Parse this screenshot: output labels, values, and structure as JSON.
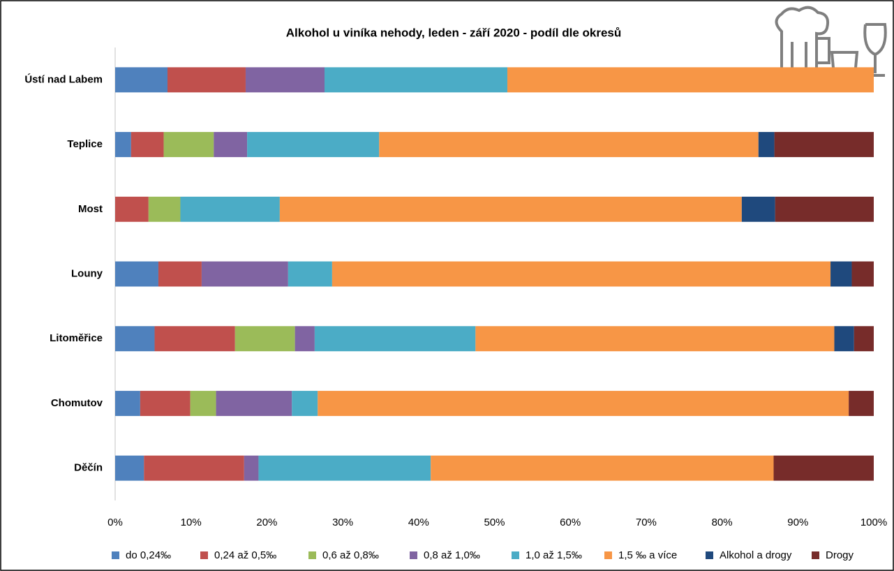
{
  "chart_data": {
    "type": "stacked-bar-horizontal",
    "title": "Alkohol u viníka nehody, leden - září 2020 - podíl dle okresů",
    "categories": [
      "Ústí nad Labem",
      "Teplice",
      "Most",
      "Louny",
      "Litoměřice",
      "Chomutov",
      "Děčín"
    ],
    "series": [
      {
        "name": "do 0,24‰",
        "color": "#4f81bd",
        "values": [
          6.9,
          2.1,
          0,
          5.7,
          5.2,
          3.3,
          3.8
        ]
      },
      {
        "name": "0,24 až 0,5‰",
        "color": "#c0504d",
        "values": [
          10.3,
          4.3,
          4.4,
          5.7,
          10.6,
          6.6,
          13.2
        ]
      },
      {
        "name": "0,6 až 0,8‰",
        "color": "#9bbb59",
        "values": [
          0,
          6.6,
          4.2,
          0,
          7.9,
          3.4,
          0
        ]
      },
      {
        "name": "0,8 až 1,0‰",
        "color": "#8064a2",
        "values": [
          10.4,
          4.4,
          0,
          11.4,
          2.6,
          10.0,
          1.9
        ]
      },
      {
        "name": "1,0 až 1,5‰",
        "color": "#4bacc6",
        "values": [
          24.1,
          17.4,
          13.1,
          5.8,
          21.2,
          3.4,
          22.7
        ]
      },
      {
        "name": "1,5 ‰ a více",
        "color": "#f79646",
        "values": [
          48.3,
          50.0,
          60.9,
          65.7,
          47.3,
          70.0,
          45.2
        ]
      },
      {
        "name": "Alkohol a drogy",
        "color": "#1f497d",
        "values": [
          0,
          2.1,
          4.4,
          2.8,
          2.6,
          0,
          0
        ]
      },
      {
        "name": "Drogy",
        "color": "#772c2a",
        "values": [
          0,
          13.1,
          13.0,
          2.9,
          2.6,
          3.3,
          13.2
        ]
      }
    ],
    "xlim": [
      0,
      100
    ],
    "xticks": [
      {
        "value": 0,
        "label": "0%"
      },
      {
        "value": 10,
        "label": "10%"
      },
      {
        "value": 20,
        "label": "20%"
      },
      {
        "value": 30,
        "label": "30%"
      },
      {
        "value": 40,
        "label": "40%"
      },
      {
        "value": 50,
        "label": "50%"
      },
      {
        "value": 60,
        "label": "60%"
      },
      {
        "value": 70,
        "label": "70%"
      },
      {
        "value": 80,
        "label": "80%"
      },
      {
        "value": 90,
        "label": "90%"
      },
      {
        "value": 100,
        "label": "100%"
      }
    ],
    "legend": "bottom"
  }
}
